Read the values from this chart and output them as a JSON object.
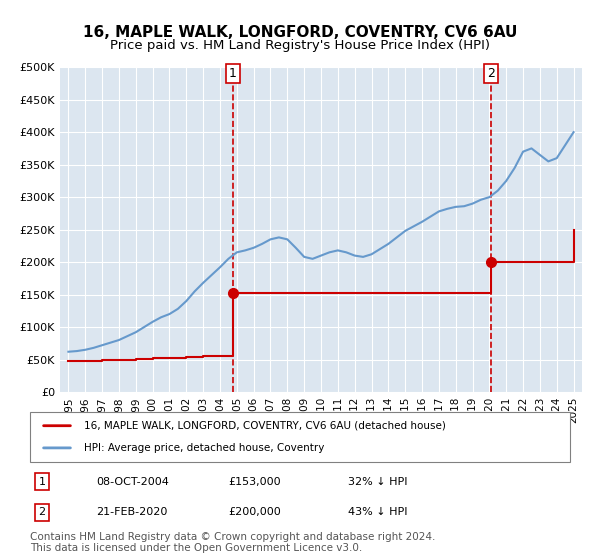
{
  "title": "16, MAPLE WALK, LONGFORD, COVENTRY, CV6 6AU",
  "subtitle": "Price paid vs. HM Land Registry's House Price Index (HPI)",
  "title_fontsize": 11,
  "subtitle_fontsize": 9.5,
  "background_color": "#ffffff",
  "plot_bg_color": "#dce6f0",
  "ylabel": "",
  "xlabel": "",
  "ylim": [
    0,
    500000
  ],
  "ytick_vals": [
    0,
    50000,
    100000,
    150000,
    200000,
    250000,
    300000,
    350000,
    400000,
    450000,
    500000
  ],
  "ytick_labels": [
    "£0",
    "£50K",
    "£100K",
    "£150K",
    "£200K",
    "£250K",
    "£300K",
    "£350K",
    "£400K",
    "£450K",
    "£500K"
  ],
  "xlim_start": 1994.5,
  "xlim_end": 2025.5,
  "xtick_years": [
    1995,
    1996,
    1997,
    1998,
    1999,
    2000,
    2001,
    2002,
    2003,
    2004,
    2005,
    2006,
    2007,
    2008,
    2009,
    2010,
    2011,
    2012,
    2013,
    2014,
    2015,
    2016,
    2017,
    2018,
    2019,
    2020,
    2021,
    2022,
    2023,
    2024,
    2025
  ],
  "hpi_x": [
    1995.0,
    1995.5,
    1996.0,
    1996.5,
    1997.0,
    1997.5,
    1998.0,
    1998.5,
    1999.0,
    1999.5,
    2000.0,
    2000.5,
    2001.0,
    2001.5,
    2002.0,
    2002.5,
    2003.0,
    2003.5,
    2004.0,
    2004.5,
    2005.0,
    2005.5,
    2006.0,
    2006.5,
    2007.0,
    2007.5,
    2008.0,
    2008.5,
    2009.0,
    2009.5,
    2010.0,
    2010.5,
    2011.0,
    2011.5,
    2012.0,
    2012.5,
    2013.0,
    2013.5,
    2014.0,
    2014.5,
    2015.0,
    2015.5,
    2016.0,
    2016.5,
    2017.0,
    2017.5,
    2018.0,
    2018.5,
    2019.0,
    2019.5,
    2020.0,
    2020.5,
    2021.0,
    2021.5,
    2022.0,
    2022.5,
    2023.0,
    2023.5,
    2024.0,
    2024.5,
    2025.0
  ],
  "hpi_y": [
    62000,
    63000,
    65000,
    68000,
    72000,
    76000,
    80000,
    86000,
    92000,
    100000,
    108000,
    115000,
    120000,
    128000,
    140000,
    155000,
    168000,
    180000,
    192000,
    205000,
    215000,
    218000,
    222000,
    228000,
    235000,
    238000,
    235000,
    222000,
    208000,
    205000,
    210000,
    215000,
    218000,
    215000,
    210000,
    208000,
    212000,
    220000,
    228000,
    238000,
    248000,
    255000,
    262000,
    270000,
    278000,
    282000,
    285000,
    286000,
    290000,
    296000,
    300000,
    310000,
    325000,
    345000,
    370000,
    375000,
    365000,
    355000,
    360000,
    380000,
    400000
  ],
  "price_paid_x": [
    1995.0,
    1996.0,
    1997.0,
    1998.0,
    1999.0,
    2000.0,
    2001.0,
    2002.0,
    2003.0,
    2004.75,
    2006.0,
    2007.0,
    2008.0,
    2009.0,
    2010.0,
    2011.0,
    2012.0,
    2013.0,
    2014.0,
    2015.0,
    2016.0,
    2017.0,
    2018.0,
    2019.0,
    2020.08,
    2021.0,
    2022.0,
    2023.0,
    2024.0,
    2025.0
  ],
  "price_paid_y": [
    47000,
    48000,
    49000,
    50000,
    51000,
    52000,
    53000,
    54000,
    55000,
    153000,
    153000,
    153000,
    153000,
    153000,
    153000,
    153000,
    153000,
    153000,
    153000,
    153000,
    153000,
    153000,
    153000,
    153000,
    200000,
    200000,
    200000,
    200000,
    200000,
    250000
  ],
  "sale1_x": 2004.75,
  "sale1_y": 153000,
  "sale1_label": "1",
  "sale2_x": 2020.08,
  "sale2_y": 200000,
  "sale2_label": "2",
  "red_line_color": "#cc0000",
  "blue_line_color": "#6699cc",
  "sale_marker_color": "#cc0000",
  "dashed_line_color": "#cc0000",
  "legend_line1": "16, MAPLE WALK, LONGFORD, COVENTRY, CV6 6AU (detached house)",
  "legend_line2": "HPI: Average price, detached house, Coventry",
  "table_row1": [
    "1",
    "08-OCT-2004",
    "£153,000",
    "32% ↓ HPI"
  ],
  "table_row2": [
    "2",
    "21-FEB-2020",
    "£200,000",
    "43% ↓ HPI"
  ],
  "footer": "Contains HM Land Registry data © Crown copyright and database right 2024.\nThis data is licensed under the Open Government Licence v3.0.",
  "footer_fontsize": 7.5
}
